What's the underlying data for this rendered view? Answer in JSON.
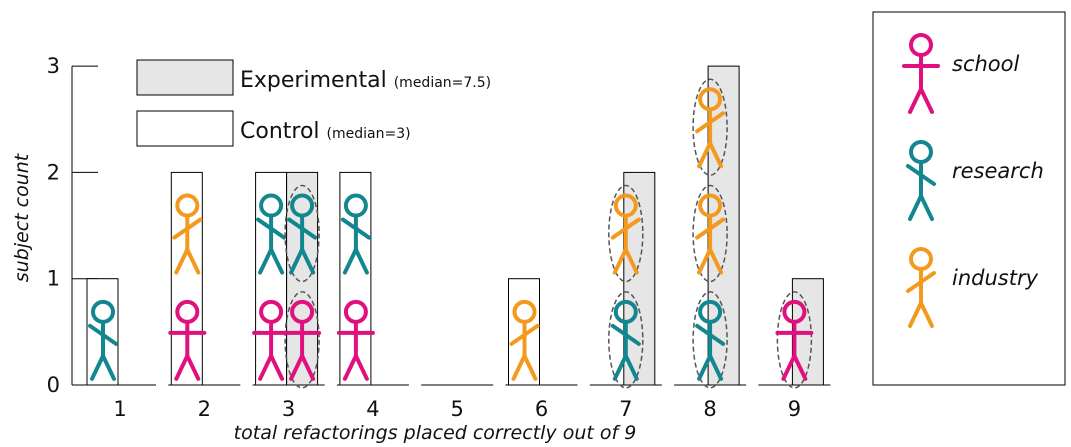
{
  "chart_data": {
    "type": "bar",
    "xlabel": "total refactorings placed correctly out of 9",
    "ylabel": "subject count",
    "categories": [
      "1",
      "2",
      "3",
      "4",
      "5",
      "6",
      "7",
      "8",
      "9"
    ],
    "ylim": [
      0,
      3
    ],
    "yticks": [
      "0",
      "1",
      "2",
      "3"
    ],
    "series": [
      {
        "name": "Experimental",
        "median_label": "(median=7.5)",
        "fill": "#e6e6e6",
        "values": [
          0,
          0,
          2,
          0,
          0,
          0,
          2,
          3,
          1
        ]
      },
      {
        "name": "Control",
        "median_label": "(median=3)",
        "fill": "#ffffff",
        "values": [
          1,
          2,
          2,
          2,
          0,
          1,
          0,
          0,
          0
        ]
      }
    ],
    "subjects": {
      "control": [
        [
          "research"
        ],
        [
          "school",
          "industry"
        ],
        [
          "school",
          "research"
        ],
        [
          "school",
          "research"
        ],
        [],
        [
          "industry"
        ],
        [],
        [],
        []
      ],
      "experimental": [
        [],
        [],
        [
          "school",
          "research"
        ],
        [],
        [],
        [],
        [
          "research",
          "industry"
        ],
        [
          "research",
          "industry",
          "industry"
        ],
        [
          "school"
        ]
      ]
    },
    "groups": [
      {
        "name": "school",
        "color": "#e0117f"
      },
      {
        "name": "research",
        "color": "#12878f"
      },
      {
        "name": "industry",
        "color": "#f39a1e"
      }
    ]
  }
}
